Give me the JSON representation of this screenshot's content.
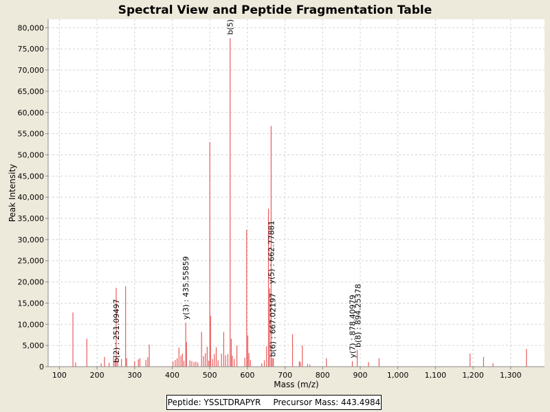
{
  "chart_data": {
    "type": "bar",
    "title": "Spectral View and Peptide Fragmentation Table",
    "xlabel": "Mass (m/z)",
    "ylabel": "Peak Intensity",
    "xlim": [
      70,
      1390
    ],
    "ylim": [
      0,
      82000
    ],
    "xticks": [
      100,
      200,
      300,
      400,
      500,
      600,
      700,
      800,
      900,
      1000,
      1100,
      1200,
      1300
    ],
    "xtick_labels": [
      "100",
      "200",
      "300",
      "400",
      "500",
      "600",
      "700",
      "800",
      "900",
      "1,000",
      "1,100",
      "1,200",
      "1,300"
    ],
    "yticks": [
      0,
      5000,
      10000,
      15000,
      20000,
      25000,
      30000,
      35000,
      40000,
      45000,
      50000,
      55000,
      60000,
      65000,
      70000,
      75000,
      80000
    ],
    "ytick_labels": [
      "0",
      "5,000",
      "10,000",
      "15,000",
      "20,000",
      "25,000",
      "30,000",
      "35,000",
      "40,000",
      "45,000",
      "50,000",
      "55,000",
      "60,000",
      "65,000",
      "70,000",
      "75,000",
      "80,000"
    ],
    "grid": true,
    "bar_color": "#e85a5a",
    "peaks": [
      {
        "mz": 136,
        "intensity": 12800
      },
      {
        "mz": 143,
        "intensity": 1000
      },
      {
        "mz": 173,
        "intensity": 6600
      },
      {
        "mz": 211,
        "intensity": 800
      },
      {
        "mz": 220,
        "intensity": 2300
      },
      {
        "mz": 232,
        "intensity": 900
      },
      {
        "mz": 244,
        "intensity": 2500
      },
      {
        "mz": 248,
        "intensity": 1400
      },
      {
        "mz": 251,
        "intensity": 18600
      },
      {
        "mz": 255,
        "intensity": 1500
      },
      {
        "mz": 265,
        "intensity": 1800
      },
      {
        "mz": 276,
        "intensity": 19000
      },
      {
        "mz": 279,
        "intensity": 2000
      },
      {
        "mz": 300,
        "intensity": 1300
      },
      {
        "mz": 310,
        "intensity": 1700
      },
      {
        "mz": 314,
        "intensity": 2000
      },
      {
        "mz": 330,
        "intensity": 1600
      },
      {
        "mz": 335,
        "intensity": 2200
      },
      {
        "mz": 339,
        "intensity": 5200
      },
      {
        "mz": 402,
        "intensity": 1200
      },
      {
        "mz": 408,
        "intensity": 1600
      },
      {
        "mz": 413,
        "intensity": 2000
      },
      {
        "mz": 418,
        "intensity": 4500
      },
      {
        "mz": 423,
        "intensity": 2600
      },
      {
        "mz": 427,
        "intensity": 3100
      },
      {
        "mz": 431,
        "intensity": 1400
      },
      {
        "mz": 436,
        "intensity": 10400
      },
      {
        "mz": 438,
        "intensity": 5800
      },
      {
        "mz": 447,
        "intensity": 1500
      },
      {
        "mz": 452,
        "intensity": 1300
      },
      {
        "mz": 458,
        "intensity": 1100
      },
      {
        "mz": 463,
        "intensity": 1200
      },
      {
        "mz": 468,
        "intensity": 1000
      },
      {
        "mz": 478,
        "intensity": 8200
      },
      {
        "mz": 483,
        "intensity": 2500
      },
      {
        "mz": 488,
        "intensity": 3200
      },
      {
        "mz": 493,
        "intensity": 4700
      },
      {
        "mz": 497,
        "intensity": 1400
      },
      {
        "mz": 500,
        "intensity": 53000
      },
      {
        "mz": 502,
        "intensity": 12000
      },
      {
        "mz": 507,
        "intensity": 1800
      },
      {
        "mz": 512,
        "intensity": 3000
      },
      {
        "mz": 517,
        "intensity": 4600
      },
      {
        "mz": 522,
        "intensity": 1500
      },
      {
        "mz": 531,
        "intensity": 3100
      },
      {
        "mz": 537,
        "intensity": 8200
      },
      {
        "mz": 542,
        "intensity": 2700
      },
      {
        "mz": 548,
        "intensity": 3000
      },
      {
        "mz": 554,
        "intensity": 77500
      },
      {
        "mz": 557,
        "intensity": 6600
      },
      {
        "mz": 560,
        "intensity": 2600
      },
      {
        "mz": 565,
        "intensity": 1800
      },
      {
        "mz": 572,
        "intensity": 5000
      },
      {
        "mz": 593,
        "intensity": 2100
      },
      {
        "mz": 598,
        "intensity": 32300
      },
      {
        "mz": 601,
        "intensity": 7400
      },
      {
        "mz": 604,
        "intensity": 3200
      },
      {
        "mz": 608,
        "intensity": 1600
      },
      {
        "mz": 638,
        "intensity": 800
      },
      {
        "mz": 645,
        "intensity": 1500
      },
      {
        "mz": 651,
        "intensity": 4800
      },
      {
        "mz": 656,
        "intensity": 37300
      },
      {
        "mz": 659,
        "intensity": 18500
      },
      {
        "mz": 663,
        "intensity": 56800
      },
      {
        "mz": 666,
        "intensity": 2000
      },
      {
        "mz": 669,
        "intensity": 2000
      },
      {
        "mz": 720,
        "intensity": 7700
      },
      {
        "mz": 738,
        "intensity": 1300
      },
      {
        "mz": 741,
        "intensity": 1100
      },
      {
        "mz": 746,
        "intensity": 5000
      },
      {
        "mz": 760,
        "intensity": 700
      },
      {
        "mz": 766,
        "intensity": 500
      },
      {
        "mz": 810,
        "intensity": 2000
      },
      {
        "mz": 879,
        "intensity": 1300
      },
      {
        "mz": 892,
        "intensity": 4000
      },
      {
        "mz": 922,
        "intensity": 1100
      },
      {
        "mz": 950,
        "intensity": 2000
      },
      {
        "mz": 1192,
        "intensity": 3100
      },
      {
        "mz": 1228,
        "intensity": 2300
      },
      {
        "mz": 1253,
        "intensity": 800
      },
      {
        "mz": 1342,
        "intensity": 4200
      }
    ],
    "annotations": [
      {
        "mz": 251,
        "intensity": 600,
        "text": "b(2) : 251.09497"
      },
      {
        "mz": 436,
        "intensity": 10800,
        "text": "y(3) : 435.55859"
      },
      {
        "mz": 554,
        "intensity": 78000,
        "text": "b(5)"
      },
      {
        "mz": 663,
        "intensity": 19200,
        "text": "y(5) : 662.77881"
      },
      {
        "mz": 667,
        "intensity": 2000,
        "text": "b(6) : 667.02197"
      },
      {
        "mz": 879,
        "intensity": 1700,
        "text": "y(7) : 878.40979"
      },
      {
        "mz": 894,
        "intensity": 4200,
        "text": "b(8) : 894.25378"
      }
    ]
  },
  "info": {
    "peptide": "Peptide: YSSLTDRAPYR",
    "precursor": "Precursor Mass: 443.4984"
  }
}
